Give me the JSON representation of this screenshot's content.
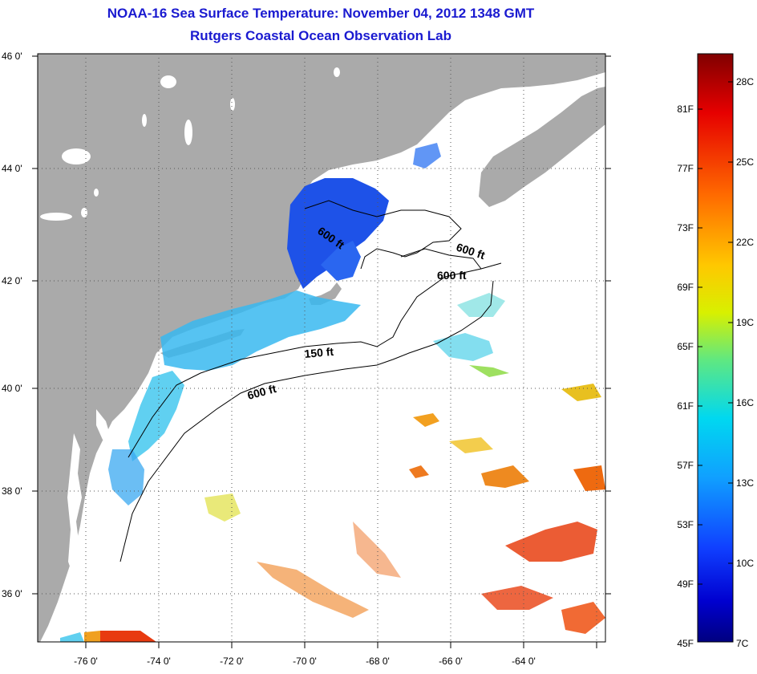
{
  "title": "NOAA-16 Sea Surface Temperature:  November 04, 2012 1348 GMT",
  "subtitle": "Rutgers Coastal Ocean Observation Lab",
  "map": {
    "lat_labels": [
      "46 0'",
      "44 0'",
      "42 0'",
      "40 0'",
      "38 0'",
      "36 0'"
    ],
    "lon_labels": [
      "-76 0'",
      "-74 0'",
      "-72 0'",
      "-70 0'",
      "-68 0'",
      "-66 0'",
      "-64 0'"
    ],
    "contour_labels": [
      "600 ft",
      "600 ft",
      "600 ft",
      "150 ft",
      "600 ft"
    ],
    "colors": {
      "land": "#aaaaaa",
      "ocean": "#ffffff",
      "grid": "#555555"
    }
  },
  "colorbar": {
    "fahrenheit_labels": [
      "81F",
      "77F",
      "73F",
      "69F",
      "65F",
      "61F",
      "57F",
      "53F",
      "49F",
      "45F"
    ],
    "celsius_labels": [
      "28C",
      "25C",
      "22C",
      "19C",
      "16C",
      "13C",
      "10C",
      "7C"
    ],
    "range_c": [
      7,
      29
    ],
    "colors": [
      "#8b0000",
      "#e60000",
      "#ff6a00",
      "#ffc800",
      "#d0f000",
      "#40e8a0",
      "#00d0f0",
      "#1060ff",
      "#0000cc",
      "#000080"
    ]
  }
}
